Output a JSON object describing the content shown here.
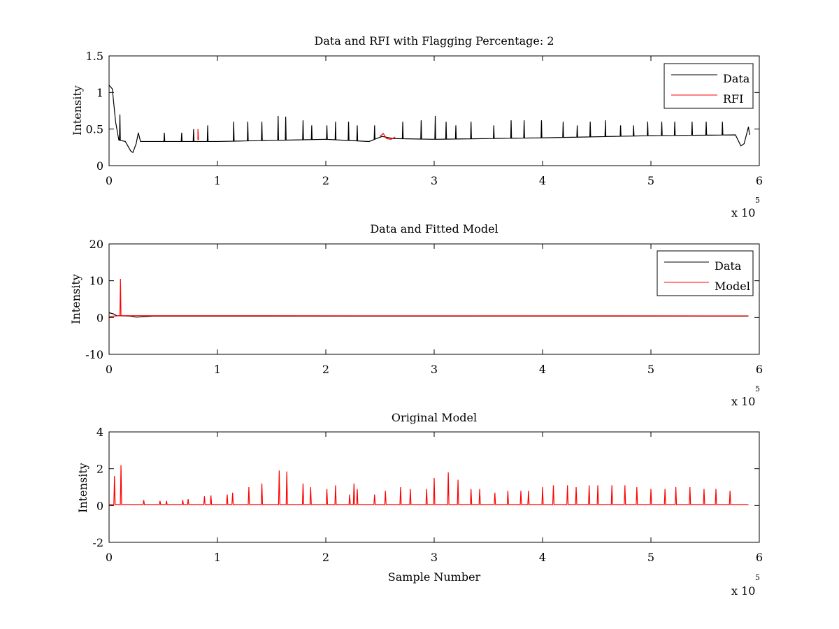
{
  "chart_data": [
    {
      "type": "line",
      "title": "Data and RFI with Flagging Percentage: 2",
      "xlabel": "",
      "ylabel": "Intensity",
      "xlim": [
        0,
        600000
      ],
      "ylim": [
        0,
        1.5
      ],
      "xticks": [
        0,
        1,
        2,
        3,
        4,
        5,
        6
      ],
      "yticks": [
        0,
        0.5,
        1,
        1.5
      ],
      "x_multiplier": {
        "text": "x 10",
        "exponent": "5"
      },
      "legend_position": "top-right",
      "legend": [
        "Data",
        "RFI"
      ],
      "colors": {
        "Data": "#000000",
        "RFI": "#ff0000"
      },
      "baseline": [
        [
          0,
          1.1
        ],
        [
          3000,
          1.05
        ],
        [
          6000,
          0.6
        ],
        [
          9000,
          0.35
        ],
        [
          15000,
          0.33
        ],
        [
          20000,
          0.2
        ],
        [
          22000,
          0.18
        ],
        [
          25000,
          0.3
        ],
        [
          27000,
          0.45
        ],
        [
          29000,
          0.33
        ],
        [
          100000,
          0.33
        ],
        [
          200000,
          0.36
        ],
        [
          240000,
          0.33
        ],
        [
          252000,
          0.4
        ],
        [
          262000,
          0.37
        ],
        [
          300000,
          0.36
        ],
        [
          400000,
          0.38
        ],
        [
          500000,
          0.41
        ],
        [
          578000,
          0.42
        ],
        [
          583000,
          0.27
        ],
        [
          586000,
          0.3
        ],
        [
          590000,
          0.53
        ],
        [
          591000,
          0.42
        ]
      ],
      "spike_positions": [
        10000,
        51000,
        67000,
        78000,
        91000,
        115000,
        128000,
        141000,
        156000,
        163000,
        179000,
        187000,
        201000,
        209000,
        221000,
        229000,
        245000,
        271000,
        288000,
        301000,
        311000,
        320000,
        334000,
        355000,
        371000,
        383000,
        399000,
        419000,
        432000,
        444000,
        458000,
        472000,
        484000,
        497000,
        510000,
        522000,
        538000,
        551000,
        566000
      ],
      "spike_heights": [
        0.7,
        0.45,
        0.45,
        0.5,
        0.55,
        0.6,
        0.6,
        0.6,
        0.68,
        0.67,
        0.62,
        0.55,
        0.55,
        0.6,
        0.6,
        0.55,
        0.55,
        0.6,
        0.62,
        0.68,
        0.6,
        0.55,
        0.6,
        0.55,
        0.62,
        0.62,
        0.62,
        0.6,
        0.55,
        0.6,
        0.62,
        0.55,
        0.55,
        0.6,
        0.6,
        0.6,
        0.6,
        0.6,
        0.6
      ],
      "rfi_segments": [
        [
          [
            82000,
            0.35
          ],
          [
            82000,
            0.5
          ],
          [
            82500,
            0.35
          ]
        ],
        [
          [
            250000,
            0.4
          ],
          [
            253000,
            0.44
          ],
          [
            256000,
            0.37
          ],
          [
            260000,
            0.36
          ],
          [
            264000,
            0.39
          ]
        ]
      ]
    },
    {
      "type": "line",
      "title": "Data and Fitted Model",
      "xlabel": "",
      "ylabel": "Intensity",
      "xlim": [
        0,
        600000
      ],
      "ylim": [
        -10,
        20
      ],
      "xticks": [
        0,
        1,
        2,
        3,
        4,
        5,
        6
      ],
      "yticks": [
        -10,
        0,
        10,
        20
      ],
      "x_multiplier": {
        "text": "x 10",
        "exponent": "5"
      },
      "legend_position": "top-right",
      "legend": [
        "Data",
        "Model"
      ],
      "colors": {
        "Data": "#000000",
        "Model": "#ff0000"
      },
      "data_line": [
        [
          0,
          1.3
        ],
        [
          4000,
          1.0
        ],
        [
          7000,
          0.5
        ],
        [
          20000,
          0.4
        ],
        [
          25000,
          0.1
        ],
        [
          40000,
          0.4
        ],
        [
          590000,
          0.4
        ]
      ],
      "model_line": [
        [
          0,
          0.3
        ],
        [
          10000,
          0.5
        ],
        [
          10500,
          10.5
        ],
        [
          11000,
          0.5
        ],
        [
          590000,
          0.45
        ]
      ]
    },
    {
      "type": "line",
      "title": "Original Model",
      "xlabel": "Sample Number",
      "ylabel": "Intensity",
      "xlim": [
        0,
        600000
      ],
      "ylim": [
        -2,
        4
      ],
      "xticks": [
        0,
        1,
        2,
        3,
        4,
        5,
        6
      ],
      "yticks": [
        -2,
        0,
        2,
        4
      ],
      "x_multiplier": {
        "text": "x 10",
        "exponent": "5"
      },
      "colors": {
        "Model": "#ff0000"
      },
      "baseline_value": 0.05,
      "spikes": [
        [
          5000,
          1.6
        ],
        [
          11000,
          2.2
        ],
        [
          32000,
          0.3
        ],
        [
          47000,
          0.25
        ],
        [
          53000,
          0.25
        ],
        [
          68000,
          0.3
        ],
        [
          73000,
          0.35
        ],
        [
          88000,
          0.5
        ],
        [
          94000,
          0.55
        ],
        [
          109000,
          0.6
        ],
        [
          114000,
          0.7
        ],
        [
          129000,
          1.0
        ],
        [
          141000,
          1.2
        ],
        [
          157000,
          1.9
        ],
        [
          164000,
          1.85
        ],
        [
          179000,
          1.2
        ],
        [
          186000,
          1.0
        ],
        [
          201000,
          0.9
        ],
        [
          209000,
          1.1
        ],
        [
          222000,
          0.6
        ],
        [
          226000,
          1.2
        ],
        [
          229000,
          0.9
        ],
        [
          245000,
          0.6
        ],
        [
          255000,
          0.8
        ],
        [
          269000,
          1.0
        ],
        [
          278000,
          0.9
        ],
        [
          293000,
          0.9
        ],
        [
          300000,
          1.5
        ],
        [
          313000,
          1.8
        ],
        [
          322000,
          1.4
        ],
        [
          334000,
          0.9
        ],
        [
          342000,
          0.9
        ],
        [
          356000,
          0.7
        ],
        [
          368000,
          0.8
        ],
        [
          380000,
          0.8
        ],
        [
          387000,
          0.8
        ],
        [
          400000,
          1.0
        ],
        [
          410000,
          1.1
        ],
        [
          423000,
          1.1
        ],
        [
          431000,
          1.0
        ],
        [
          443000,
          1.1
        ],
        [
          451000,
          1.1
        ],
        [
          464000,
          1.1
        ],
        [
          476000,
          1.1
        ],
        [
          487000,
          1.0
        ],
        [
          500000,
          0.9
        ],
        [
          513000,
          0.9
        ],
        [
          523000,
          1.0
        ],
        [
          536000,
          1.0
        ],
        [
          549000,
          0.9
        ],
        [
          560000,
          0.9
        ],
        [
          573000,
          0.8
        ]
      ]
    }
  ]
}
